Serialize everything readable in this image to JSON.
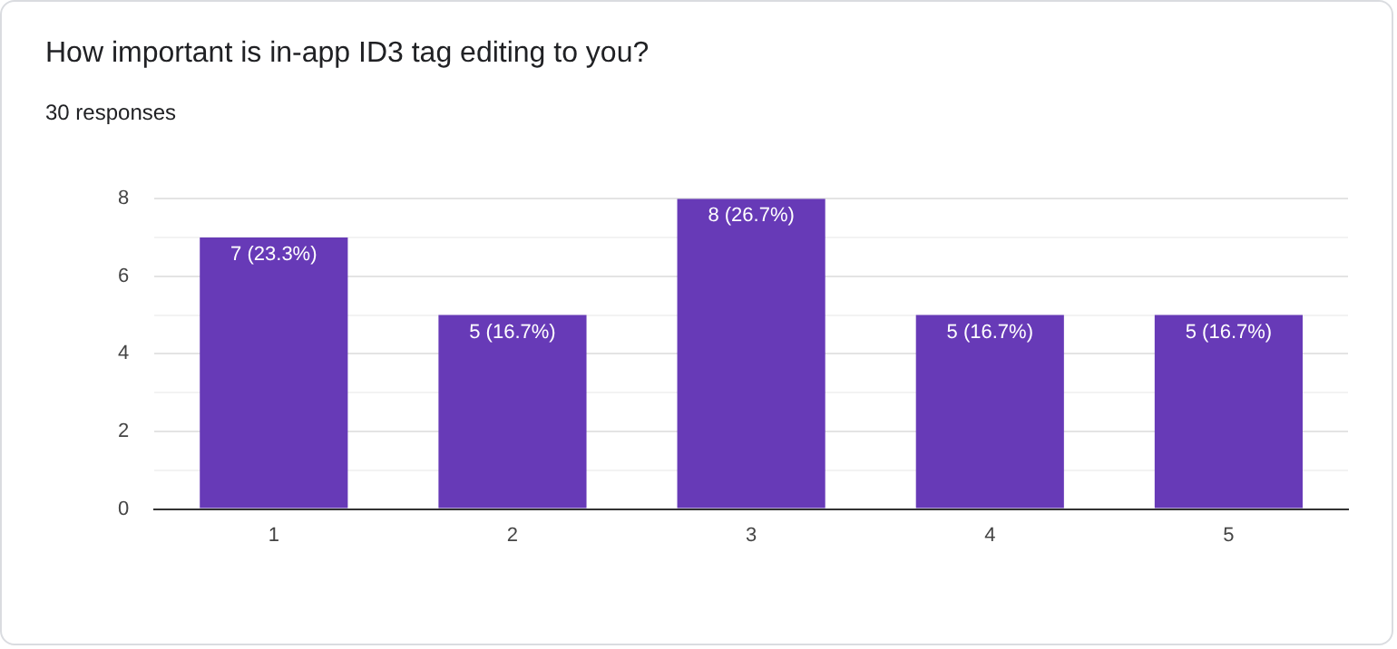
{
  "chart_data": {
    "type": "bar",
    "title": "How important is in-app ID3 tag editing to you?",
    "subtitle": "30 responses",
    "categories": [
      "1",
      "2",
      "3",
      "4",
      "5"
    ],
    "values": [
      7,
      5,
      8,
      5,
      5
    ],
    "value_labels": [
      "7 (23.3%)",
      "5 (16.7%)",
      "8 (26.7%)",
      "5 (16.7%)",
      "5 (16.7%)"
    ],
    "color": "#673ab7",
    "ylim": [
      0,
      8
    ],
    "yticks": [
      0,
      {
        "value": 1,
        "label": null
      },
      2,
      {
        "value": 3,
        "label": null
      },
      4,
      {
        "value": 5,
        "label": null
      },
      6,
      {
        "value": 7,
        "label": null
      },
      8
    ],
    "grid": "y",
    "legend": false
  }
}
